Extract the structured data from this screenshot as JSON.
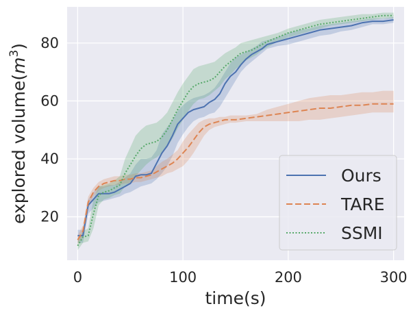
{
  "chart_data": {
    "type": "line",
    "title": "",
    "xlabel": "time(s)",
    "ylabel_base": "explored volume(",
    "ylabel_var": "m",
    "ylabel_exp": "3",
    "ylabel_close": ")",
    "xlim": [
      -10,
      310
    ],
    "ylim": [
      5,
      92.5
    ],
    "xticks": [
      0,
      100,
      200,
      300
    ],
    "yticks": [
      20,
      40,
      60,
      80
    ],
    "xtick_labels": [
      "0",
      "100",
      "200",
      "300"
    ],
    "ytick_labels": [
      "20",
      "40",
      "60",
      "80"
    ],
    "grid": true,
    "legend_position": "lower-right",
    "colors": {
      "background": "#eaeaf2",
      "grid": "#ffffff",
      "ours": "#4c72b0",
      "tare": "#dd8452",
      "ssmi": "#55a868"
    },
    "series": [
      {
        "name": "Ours",
        "style": "solid",
        "color": "#4c72b0",
        "x": [
          0,
          5,
          10,
          15,
          20,
          25,
          30,
          35,
          40,
          45,
          50,
          55,
          60,
          65,
          70,
          75,
          80,
          85,
          90,
          95,
          100,
          105,
          110,
          115,
          120,
          125,
          130,
          135,
          140,
          145,
          150,
          155,
          160,
          165,
          170,
          175,
          180,
          185,
          190,
          200,
          210,
          220,
          230,
          240,
          250,
          260,
          270,
          280,
          290,
          300
        ],
        "values": [
          13.5,
          13.5,
          24,
          26,
          28,
          28,
          28,
          28.5,
          29.5,
          30.5,
          31.5,
          34,
          34.5,
          34.5,
          35,
          38.5,
          42,
          44.5,
          48,
          52,
          54,
          56,
          57,
          57.5,
          58,
          59.5,
          60.5,
          62.5,
          66,
          68.5,
          70,
          72.5,
          74.5,
          76,
          77,
          78,
          79.5,
          80,
          80.5,
          81.5,
          82.5,
          83.5,
          84.5,
          85,
          85.5,
          86,
          87,
          87.5,
          87.5,
          88
        ],
        "lower": [
          11,
          11,
          21,
          23,
          25,
          25.5,
          26,
          26.5,
          27,
          28,
          28.5,
          29.5,
          30.5,
          31,
          31.5,
          33,
          35,
          37.5,
          41,
          45.5,
          48.5,
          51,
          53,
          54,
          54.5,
          55.5,
          56,
          58,
          61,
          64,
          67,
          70,
          72,
          73.5,
          75,
          76.5,
          78,
          78.5,
          79,
          79.5,
          80.5,
          81.5,
          82.5,
          83,
          84,
          84.5,
          85.5,
          86.5,
          86.5,
          87
        ],
        "upper": [
          15.5,
          15.5,
          26,
          28.5,
          30.5,
          30.5,
          31,
          31,
          32,
          33.5,
          35,
          38,
          40,
          40,
          40.5,
          43,
          48.5,
          51,
          53.5,
          56.5,
          58.5,
          60,
          61,
          61.5,
          62,
          63,
          64.5,
          67,
          70,
          73,
          75,
          76,
          77,
          78,
          79,
          80.5,
          81,
          81.5,
          82,
          83.5,
          84.5,
          85,
          86,
          86.5,
          87,
          87.5,
          88,
          88.5,
          88.5,
          89
        ]
      },
      {
        "name": "TARE",
        "style": "dashed",
        "color": "#dd8452",
        "x": [
          0,
          5,
          10,
          15,
          20,
          25,
          30,
          35,
          40,
          45,
          50,
          55,
          60,
          65,
          70,
          75,
          80,
          85,
          90,
          95,
          100,
          105,
          110,
          115,
          120,
          125,
          130,
          135,
          140,
          145,
          150,
          160,
          170,
          180,
          190,
          200,
          210,
          220,
          230,
          240,
          250,
          260,
          270,
          280,
          290,
          300
        ],
        "values": [
          12,
          15,
          25,
          28.5,
          30.5,
          31.5,
          32,
          32.5,
          32.5,
          33,
          33,
          33.5,
          33.5,
          34,
          34.5,
          35.5,
          36.5,
          37.5,
          38.5,
          40,
          42,
          44,
          46.5,
          49,
          51,
          52,
          52.5,
          53,
          53.5,
          53.5,
          53.5,
          54,
          54.5,
          55,
          55.5,
          56,
          56.5,
          57,
          57.5,
          57.5,
          58,
          58.5,
          58.5,
          59,
          59,
          59
        ],
        "lower": [
          10.5,
          13,
          23,
          27,
          29,
          30,
          30.5,
          31,
          31,
          31.5,
          31.5,
          32,
          32,
          32.5,
          33,
          33.5,
          34,
          35,
          35.5,
          36.5,
          37.5,
          39.5,
          42,
          45,
          48,
          50,
          51,
          51.5,
          52,
          52.5,
          52.5,
          53,
          53,
          53,
          53,
          53,
          53,
          53.5,
          53.5,
          54,
          54.5,
          55,
          55.5,
          56,
          56,
          56
        ],
        "upper": [
          13.5,
          17,
          27,
          30,
          32,
          33,
          33.5,
          34,
          34,
          34.5,
          34.5,
          35,
          35,
          35.5,
          36,
          37.5,
          39,
          40,
          41.5,
          43,
          46,
          48.5,
          50.5,
          52.5,
          53.5,
          54,
          54,
          54.5,
          54.5,
          55,
          55,
          55,
          55.5,
          57,
          58,
          59,
          60,
          61,
          61.5,
          62,
          62,
          62.5,
          63,
          63,
          63.5,
          63.5
        ]
      },
      {
        "name": "SSMI",
        "style": "dotted",
        "color": "#55a868",
        "x": [
          0,
          5,
          10,
          15,
          20,
          25,
          30,
          35,
          40,
          45,
          50,
          55,
          60,
          65,
          70,
          75,
          80,
          85,
          90,
          95,
          100,
          105,
          110,
          115,
          120,
          125,
          130,
          135,
          140,
          145,
          150,
          155,
          160,
          165,
          170,
          175,
          180,
          190,
          200,
          210,
          220,
          230,
          240,
          250,
          260,
          270,
          280,
          290,
          300
        ],
        "values": [
          10,
          13,
          13.5,
          21,
          27.5,
          28.5,
          29,
          30,
          31,
          35,
          38,
          41,
          43.5,
          45,
          45.5,
          46,
          47.5,
          50,
          53.5,
          57,
          60,
          63,
          65,
          66,
          66.5,
          67,
          68,
          70,
          72,
          73.5,
          75,
          76.5,
          77,
          77.5,
          78.5,
          79.5,
          80.5,
          82,
          83.5,
          84.5,
          85.5,
          86.5,
          87,
          87.5,
          88,
          88.5,
          89,
          89.5,
          89.5
        ],
        "lower": [
          8.5,
          11,
          11.5,
          16,
          24,
          26,
          26.5,
          27.5,
          28,
          30.5,
          32,
          34,
          36,
          38,
          39.5,
          40.5,
          42,
          44,
          47,
          50.5,
          53.5,
          56.5,
          59,
          60.5,
          61,
          62,
          63.5,
          65,
          67.5,
          69,
          71,
          72.5,
          74,
          75,
          76,
          77.5,
          78.5,
          80.5,
          82,
          83,
          84,
          85,
          86,
          86.5,
          87,
          87.5,
          88,
          88.5,
          88.5
        ],
        "upper": [
          11.5,
          15,
          16,
          26,
          30.5,
          31,
          31.5,
          32.5,
          34,
          40,
          44,
          48,
          50,
          51.5,
          52,
          52.5,
          54,
          56,
          59.5,
          63,
          66,
          68.5,
          71,
          72,
          72.5,
          73,
          73.5,
          75,
          76.5,
          77.5,
          78.5,
          80,
          80.5,
          81,
          81.5,
          82,
          82.5,
          83.5,
          85,
          86,
          87,
          88,
          88.5,
          89,
          89.5,
          90,
          90,
          90.5,
          90.5
        ]
      }
    ]
  }
}
